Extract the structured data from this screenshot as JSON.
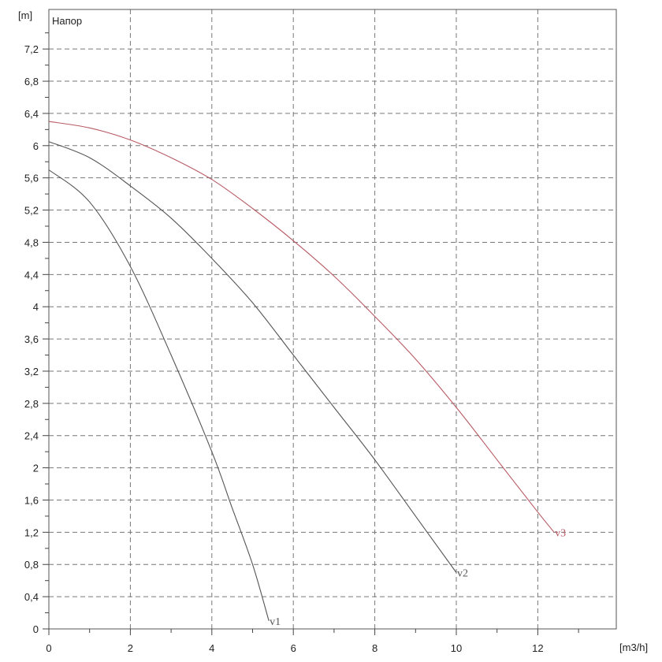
{
  "chart_data": {
    "type": "line",
    "title": "Напор",
    "xlabel": "[m3/h]",
    "ylabel": "[m]",
    "xlim": [
      0,
      14
    ],
    "ylim": [
      0,
      7.6
    ],
    "x_ticks": [
      {
        "value": 0,
        "label": "0"
      },
      {
        "value": 2,
        "label": "2"
      },
      {
        "value": 4,
        "label": "4"
      },
      {
        "value": 6,
        "label": "6"
      },
      {
        "value": 8,
        "label": "8"
      },
      {
        "value": 10,
        "label": "10"
      },
      {
        "value": 12,
        "label": "12"
      }
    ],
    "y_ticks": [
      {
        "value": 0,
        "label": "0"
      },
      {
        "value": 0.4,
        "label": "0,4"
      },
      {
        "value": 0.8,
        "label": "0,8"
      },
      {
        "value": 1.2,
        "label": "1,2"
      },
      {
        "value": 1.6,
        "label": "1,6"
      },
      {
        "value": 2,
        "label": "2"
      },
      {
        "value": 2.4,
        "label": "2,4"
      },
      {
        "value": 2.8,
        "label": "2,8"
      },
      {
        "value": 3.2,
        "label": "3,2"
      },
      {
        "value": 3.6,
        "label": "3,6"
      },
      {
        "value": 4,
        "label": "4"
      },
      {
        "value": 4.4,
        "label": "4,4"
      },
      {
        "value": 4.8,
        "label": "4,8"
      },
      {
        "value": 5.2,
        "label": "5,2"
      },
      {
        "value": 5.6,
        "label": "5,6"
      },
      {
        "value": 6,
        "label": "6"
      },
      {
        "value": 6.4,
        "label": "6,4"
      },
      {
        "value": 6.8,
        "label": "6,8"
      },
      {
        "value": 7.2,
        "label": "7,2"
      }
    ],
    "grid": true,
    "series": [
      {
        "name": "v1",
        "color": "#555555",
        "x": [
          0,
          1,
          2,
          3,
          4,
          4.5,
          5,
          5.4
        ],
        "y": [
          5.7,
          5.3,
          4.5,
          3.4,
          2.2,
          1.5,
          0.8,
          0.1
        ]
      },
      {
        "name": "v2",
        "color": "#555555",
        "x": [
          0,
          1,
          2,
          3,
          4,
          5,
          6,
          7,
          8,
          9,
          10
        ],
        "y": [
          6.05,
          5.85,
          5.5,
          5.1,
          4.6,
          4.05,
          3.4,
          2.75,
          2.1,
          1.4,
          0.7
        ]
      },
      {
        "name": "v3",
        "color": "#b85b64",
        "x": [
          0,
          1,
          2,
          3,
          4,
          5,
          6,
          7,
          8,
          9,
          10,
          11,
          12,
          12.4
        ],
        "y": [
          6.3,
          6.22,
          6.07,
          5.85,
          5.58,
          5.22,
          4.82,
          4.38,
          3.88,
          3.35,
          2.75,
          2.1,
          1.45,
          1.2
        ]
      }
    ]
  }
}
